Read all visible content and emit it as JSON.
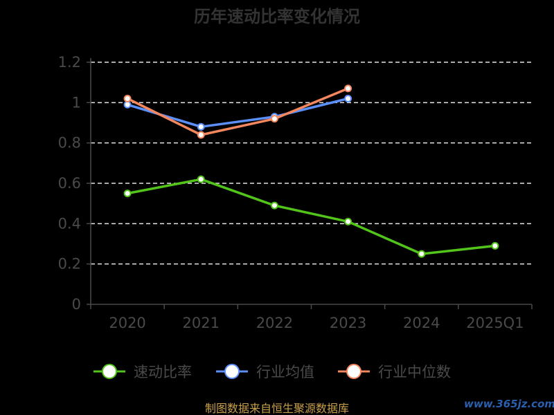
{
  "chart_data": {
    "type": "line",
    "title": "历年速动比率变化情况",
    "categories": [
      "2020",
      "2021",
      "2022",
      "2023",
      "2024",
      "2025Q1"
    ],
    "ylim": [
      0,
      1.2
    ],
    "yticks": [
      "0",
      "0.2",
      "0.4",
      "0.6",
      "0.8",
      "1",
      "1.2"
    ],
    "grid": true,
    "legend_position": "bottom",
    "series": [
      {
        "name": "速动比率",
        "color": "#52c41a",
        "values": [
          0.55,
          0.62,
          0.49,
          0.41,
          0.25,
          0.29
        ]
      },
      {
        "name": "行业均值",
        "color": "#5b8ff9",
        "values": [
          0.99,
          0.88,
          0.93,
          1.02,
          null,
          null
        ]
      },
      {
        "name": "行业中位数",
        "color": "#f4875e",
        "values": [
          1.02,
          0.84,
          0.92,
          1.07,
          null,
          null
        ]
      }
    ]
  },
  "footer": {
    "source": "制图数据来自恒生聚源数据库",
    "watermark": "www.365jz.com"
  }
}
